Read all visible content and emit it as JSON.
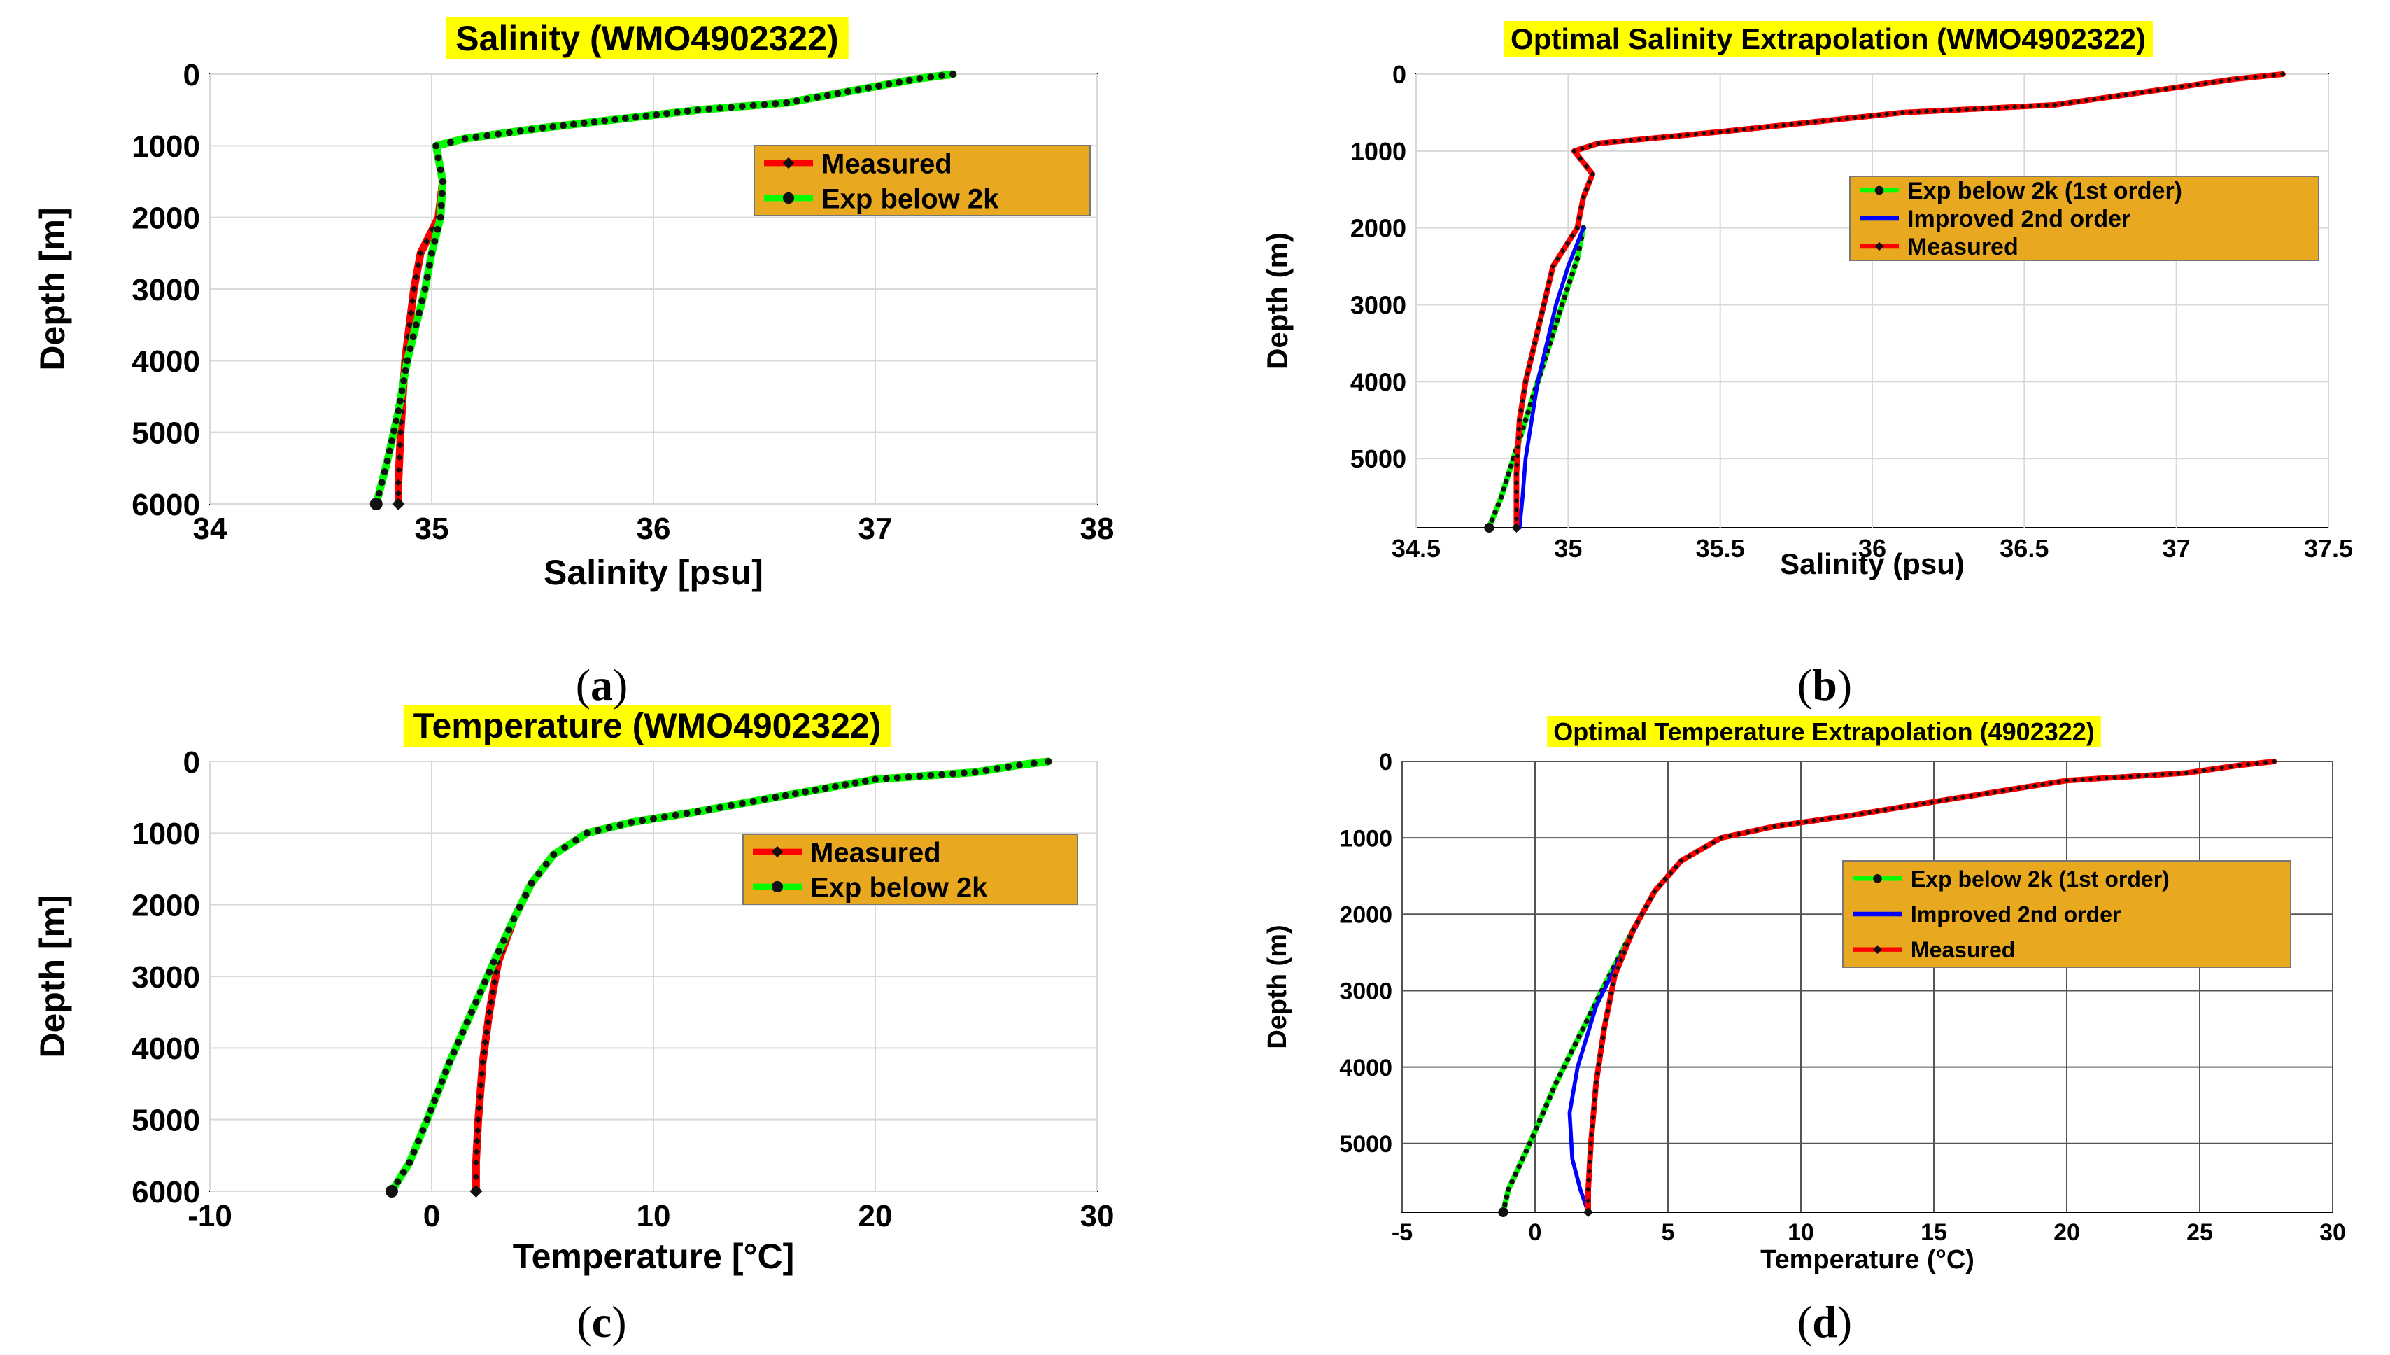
{
  "chart_data": [
    {
      "id": "a",
      "type": "line",
      "style": "bold",
      "title": "Salinity (WMO4902322)",
      "xlabel": "Salinity [psu]",
      "ylabel": "Depth [m]",
      "xlim": [
        34,
        38
      ],
      "ylim": [
        0,
        6000
      ],
      "xticks": [
        34,
        35,
        36,
        37,
        38
      ],
      "xtick_labels": [
        "34",
        "35",
        "36",
        "37",
        "38"
      ],
      "yticks": [
        0,
        1000,
        2000,
        3000,
        4000,
        5000,
        6000
      ],
      "ytick_labels": [
        "0",
        "1000",
        "2000",
        "3000",
        "4000",
        "5000",
        "6000"
      ],
      "grid_color": "#d9d9d9",
      "legend": {
        "location": "top-right",
        "entries": [
          "Measured",
          "Exp below 2k"
        ]
      },
      "series": [
        {
          "name": "Measured",
          "color": "#ff0000",
          "marker_color": "#111111",
          "marker": "diamond",
          "x": [
            37.35,
            37.2,
            36.6,
            36.2,
            35.5,
            35.15,
            35.02,
            35.05,
            35.03,
            34.95,
            34.92,
            34.9,
            34.88,
            34.86,
            34.85,
            34.85
          ],
          "y": [
            0,
            60,
            400,
            500,
            750,
            900,
            1000,
            1500,
            2000,
            2500,
            3000,
            3500,
            4000,
            5000,
            5700,
            6000
          ]
        },
        {
          "name": "Exp below 2k",
          "color": "#00ff00",
          "marker_color": "#111111",
          "marker": "circle",
          "x": [
            37.35,
            37.2,
            36.6,
            36.2,
            35.5,
            35.15,
            35.02,
            35.05,
            35.04,
            35.0,
            34.97,
            34.93,
            34.89,
            34.85,
            34.8,
            34.75
          ],
          "y": [
            0,
            60,
            400,
            500,
            750,
            900,
            1000,
            1500,
            2000,
            2500,
            3000,
            3500,
            4000,
            4700,
            5400,
            6000
          ]
        }
      ]
    },
    {
      "id": "b",
      "type": "line",
      "style": "plain",
      "title": "Optimal Salinity Extrapolation (WMO4902322)",
      "xlabel": "Salinity (psu)",
      "ylabel": "Depth (m)",
      "xlim": [
        34.5,
        37.5
      ],
      "ylim": [
        0,
        5900
      ],
      "xticks": [
        34.5,
        35,
        35.5,
        36,
        36.5,
        37,
        37.5
      ],
      "xtick_labels": [
        "34.5",
        "35",
        "35.5",
        "36",
        "36.5",
        "37",
        "37.5"
      ],
      "yticks": [
        0,
        1000,
        2000,
        3000,
        4000,
        5000
      ],
      "ytick_labels": [
        "0",
        "1000",
        "2000",
        "3000",
        "4000",
        "5000"
      ],
      "grid_color": "#d9d9d9",
      "legend": {
        "location": "middle-right",
        "entries": [
          "Exp below 2k (1st order)",
          "Improved 2nd order",
          "Measured"
        ]
      },
      "series": [
        {
          "name": "Exp below 2k (1st order)",
          "color": "#00ff00",
          "marker_color": "#111111",
          "marker": "circle",
          "x": [
            35.05,
            35.03,
            34.98,
            34.94,
            34.9,
            34.86,
            34.82,
            34.78,
            34.74
          ],
          "y": [
            2000,
            2400,
            3000,
            3500,
            4000,
            4500,
            5000,
            5500,
            5900
          ]
        },
        {
          "name": "Improved 2nd order",
          "color": "#0000ff",
          "marker_color": "#0000ff",
          "marker": "none",
          "x": [
            35.05,
            35.0,
            34.96,
            34.93,
            34.9,
            34.88,
            34.86,
            34.85,
            34.84
          ],
          "y": [
            2000,
            2500,
            3000,
            3500,
            4000,
            4500,
            5000,
            5500,
            5900
          ]
        },
        {
          "name": "Measured",
          "color": "#ff0000",
          "marker_color": "#111111",
          "marker": "diamond",
          "x": [
            37.35,
            37.2,
            36.6,
            36.1,
            35.5,
            35.1,
            35.02,
            35.08,
            35.05,
            35.03,
            34.95,
            34.92,
            34.89,
            34.86,
            34.84,
            34.83,
            34.83
          ],
          "y": [
            0,
            60,
            400,
            500,
            750,
            900,
            1000,
            1300,
            1600,
            2000,
            2500,
            3000,
            3500,
            4000,
            4500,
            5200,
            5900
          ]
        }
      ]
    },
    {
      "id": "c",
      "type": "line",
      "style": "bold",
      "title": "Temperature (WMO4902322)",
      "xlabel": "Temperature [°C]",
      "ylabel": "Depth [m]",
      "xlim": [
        -10,
        30
      ],
      "ylim": [
        0,
        6000
      ],
      "xticks": [
        -10,
        0,
        10,
        20,
        30
      ],
      "xtick_labels": [
        "-10",
        "0",
        "10",
        "20",
        "30"
      ],
      "yticks": [
        0,
        1000,
        2000,
        3000,
        4000,
        5000,
        6000
      ],
      "ytick_labels": [
        "0",
        "1000",
        "2000",
        "3000",
        "4000",
        "5000",
        "6000"
      ],
      "grid_color": "#d9d9d9",
      "legend": {
        "location": "top-right",
        "entries": [
          "Measured",
          "Exp below 2k"
        ]
      },
      "series": [
        {
          "name": "Measured",
          "color": "#ff0000",
          "marker_color": "#111111",
          "marker": "diamond",
          "x": [
            27.8,
            26.5,
            24.5,
            20,
            15.5,
            12,
            9,
            7,
            5.5,
            4.5,
            3.7,
            3.0,
            2.6,
            2.3,
            2.1,
            2.0,
            2.0
          ],
          "y": [
            0,
            50,
            150,
            250,
            500,
            700,
            850,
            1000,
            1300,
            1700,
            2200,
            2800,
            3500,
            4200,
            5000,
            5600,
            6000
          ]
        },
        {
          "name": "Exp below 2k",
          "color": "#00ff00",
          "marker_color": "#111111",
          "marker": "circle",
          "x": [
            27.8,
            26.5,
            24.5,
            20,
            15.5,
            12,
            9,
            7,
            5.5,
            4.5,
            3.7,
            2.8,
            1.8,
            0.8,
            -0.2,
            -1.0,
            -1.8
          ],
          "y": [
            0,
            50,
            150,
            250,
            500,
            700,
            850,
            1000,
            1300,
            1700,
            2200,
            2800,
            3500,
            4200,
            5000,
            5600,
            6000
          ]
        }
      ]
    },
    {
      "id": "d",
      "type": "line",
      "style": "plain",
      "title": "Optimal Temperature Extrapolation (4902322)",
      "xlabel": "Temperature (°C)",
      "ylabel": "Depth (m)",
      "xlim": [
        -5,
        30
      ],
      "ylim": [
        0,
        5900
      ],
      "xticks": [
        -5,
        0,
        5,
        10,
        15,
        20,
        25,
        30
      ],
      "xtick_labels": [
        "-5",
        "0",
        "5",
        "10",
        "15",
        "20",
        "25",
        "30"
      ],
      "yticks": [
        0,
        1000,
        2000,
        3000,
        4000,
        5000
      ],
      "ytick_labels": [
        "0",
        "1000",
        "2000",
        "3000",
        "4000",
        "5000"
      ],
      "grid_color": "#555555",
      "legend": {
        "location": "middle-right",
        "entries": [
          "Exp below 2k (1st order)",
          "Improved 2nd order",
          "Measured"
        ]
      },
      "series": [
        {
          "name": "Exp below 2k (1st order)",
          "color": "#00ff00",
          "marker_color": "#111111",
          "marker": "circle",
          "x": [
            4.5,
            3.7,
            2.8,
            1.8,
            0.8,
            -0.2,
            -1.0,
            -1.2
          ],
          "y": [
            1700,
            2200,
            2800,
            3500,
            4200,
            5000,
            5600,
            5900
          ]
        },
        {
          "name": "Improved 2nd order",
          "color": "#0000ff",
          "marker_color": "#0000ff",
          "marker": "none",
          "x": [
            4.5,
            3.3,
            2.3,
            1.6,
            1.3,
            1.4,
            1.7,
            2.0
          ],
          "y": [
            1700,
            2500,
            3200,
            4000,
            4600,
            5200,
            5600,
            5900
          ]
        },
        {
          "name": "Measured",
          "color": "#ff0000",
          "marker_color": "#111111",
          "marker": "diamond",
          "x": [
            27.8,
            26.5,
            24.5,
            20,
            15.5,
            12,
            9,
            7,
            5.5,
            4.5,
            3.7,
            3.0,
            2.6,
            2.3,
            2.1,
            2.0,
            2.0
          ],
          "y": [
            0,
            50,
            150,
            250,
            500,
            700,
            850,
            1000,
            1300,
            1700,
            2200,
            2800,
            3500,
            4200,
            5000,
            5600,
            5900
          ]
        }
      ]
    }
  ],
  "captions": [
    {
      "open": "(",
      "letter": "a",
      "close": ")"
    },
    {
      "open": "(",
      "letter": "b",
      "close": ")"
    },
    {
      "open": "(",
      "letter": "c",
      "close": ")"
    },
    {
      "open": "(",
      "letter": "d",
      "close": ")"
    }
  ],
  "colors": {
    "title_highlight": "#ffff00",
    "legend_background": "#e8a921",
    "caption_text": "#000000"
  }
}
